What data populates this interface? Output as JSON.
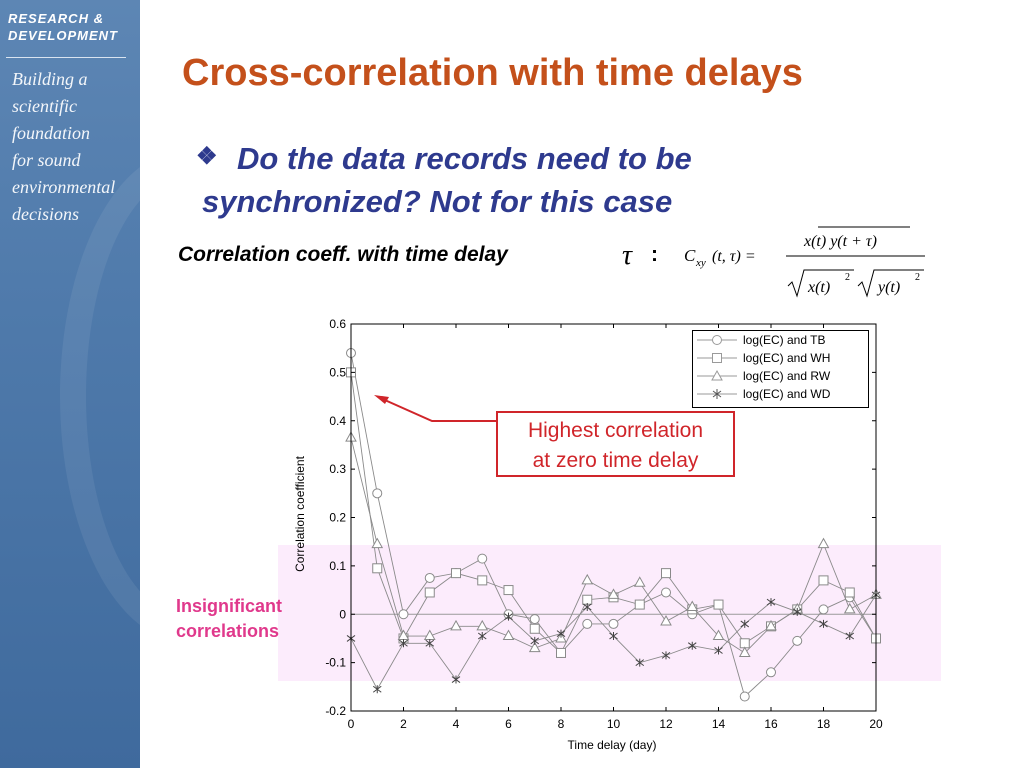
{
  "sidebar": {
    "brand_line1": "RESEARCH &",
    "brand_line2": "DEVELOPMENT",
    "tagline": [
      "Building a",
      "scientific",
      "foundation",
      "for sound",
      "environmental",
      "decisions"
    ]
  },
  "slide": {
    "title": "Cross-correlation with time delays",
    "bullet_icon": "❖",
    "bullet_text": "Do the data records need to be synchronized? Not for this case",
    "corr_label": "Correlation coeff. with time delay",
    "tau": "τ",
    "colon": ":",
    "formula": {
      "lhs": "C",
      "lhs_sub": "xy",
      "lhs_args": "(t, τ) =",
      "numerator": "x(t) y(t + τ)",
      "den_left": "x(t)",
      "den_right": "y(t)",
      "power": "2"
    },
    "insignificant_label": [
      "Insignificant",
      "correlations"
    ],
    "callout": [
      "Highest correlation",
      "at zero time delay"
    ],
    "colors": {
      "title": "#c4501b",
      "bullet": "#2e3a8e",
      "highlight": "#e0398c",
      "callout": "#d0252a",
      "band": "#fcecfc"
    }
  },
  "chart_data": {
    "type": "line",
    "xlabel": "Time delay (day)",
    "ylabel": "Correlation coefficient",
    "xlim": [
      0,
      20
    ],
    "ylim": [
      -0.2,
      0.6
    ],
    "xticks": [
      0,
      2,
      4,
      6,
      8,
      10,
      12,
      14,
      16,
      18,
      20
    ],
    "yticks": [
      -0.2,
      -0.1,
      0,
      0.1,
      0.2,
      0.3,
      0.4,
      0.5,
      0.6
    ],
    "legend_position": "top-right",
    "x": [
      0,
      1,
      2,
      3,
      4,
      5,
      6,
      7,
      8,
      9,
      10,
      11,
      12,
      13,
      14,
      15,
      16,
      17,
      18,
      19,
      20
    ],
    "series": [
      {
        "name": "log(EC) and TB",
        "marker": "circle",
        "values": [
          0.54,
          0.25,
          0.0,
          0.075,
          0.085,
          0.115,
          0.0,
          -0.01,
          -0.08,
          -0.02,
          -0.02,
          0.02,
          0.045,
          0.0,
          0.02,
          -0.17,
          -0.12,
          -0.055,
          0.01,
          0.035,
          -0.05
        ]
      },
      {
        "name": "log(EC) and WH",
        "marker": "square",
        "values": [
          0.5,
          0.095,
          -0.05,
          0.045,
          0.085,
          0.07,
          0.05,
          -0.03,
          -0.08,
          0.03,
          0.035,
          0.02,
          0.085,
          0.01,
          0.02,
          -0.06,
          -0.025,
          0.01,
          0.07,
          0.045,
          -0.05
        ]
      },
      {
        "name": "log(EC) and RW",
        "marker": "triangle",
        "values": [
          0.365,
          0.145,
          -0.045,
          -0.045,
          -0.025,
          -0.025,
          -0.045,
          -0.07,
          -0.05,
          0.07,
          0.04,
          0.065,
          -0.015,
          0.015,
          -0.045,
          -0.08,
          -0.025,
          0.01,
          0.145,
          0.01,
          0.04
        ]
      },
      {
        "name": "log(EC) and WD",
        "marker": "star",
        "values": [
          -0.05,
          -0.155,
          -0.06,
          -0.06,
          -0.135,
          -0.045,
          -0.005,
          -0.055,
          -0.04,
          0.015,
          -0.045,
          -0.1,
          -0.085,
          -0.065,
          -0.075,
          -0.02,
          0.025,
          0.005,
          -0.02,
          -0.045,
          0.04
        ]
      }
    ]
  }
}
